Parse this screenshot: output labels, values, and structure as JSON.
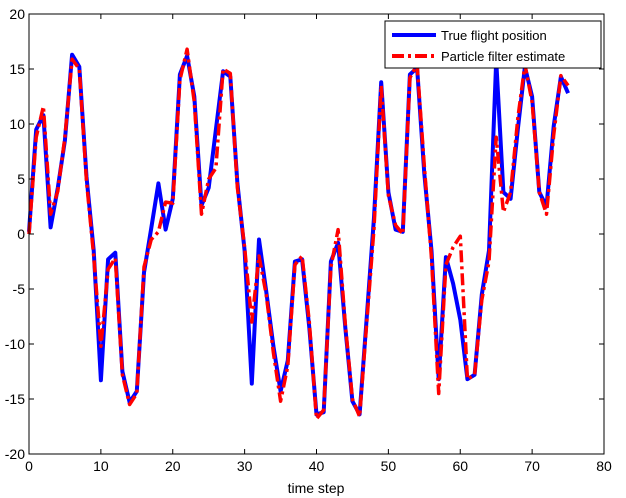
{
  "chart_data": {
    "type": "line",
    "title": "",
    "xlabel": "time step",
    "ylabel": "",
    "xlim": [
      0,
      80
    ],
    "ylim": [
      -20,
      20
    ],
    "xticks": [
      0,
      10,
      20,
      30,
      40,
      50,
      60,
      70,
      80
    ],
    "yticks": [
      -20,
      -15,
      -10,
      -5,
      0,
      5,
      10,
      15,
      20
    ],
    "grid": false,
    "legend_position": "top-right",
    "series": [
      {
        "name": "True flight position",
        "color": "#0000ff",
        "style": "solid",
        "x": [
          0,
          1,
          2,
          3,
          4,
          5,
          6,
          7,
          8,
          9,
          10,
          11,
          12,
          13,
          14,
          15,
          16,
          17,
          18,
          19,
          20,
          21,
          22,
          23,
          24,
          25,
          26,
          27,
          28,
          29,
          30,
          31,
          32,
          33,
          34,
          35,
          36,
          37,
          38,
          39,
          40,
          41,
          42,
          43,
          44,
          45,
          46,
          47,
          48,
          49,
          50,
          51,
          52,
          53,
          54,
          55,
          56,
          57,
          58,
          59,
          60,
          61,
          62,
          63,
          64,
          65,
          66,
          67,
          68,
          69,
          70,
          71,
          72,
          73,
          74,
          75
        ],
        "y": [
          0.2,
          9.5,
          10.8,
          0.6,
          4.2,
          8.5,
          16.3,
          15.2,
          5.2,
          -1.5,
          -13.3,
          -2.3,
          -1.7,
          -12.5,
          -15.3,
          -14.3,
          -3.5,
          0.5,
          4.6,
          0.4,
          3.2,
          14.5,
          16.2,
          12.5,
          2.6,
          4.2,
          9.5,
          14.8,
          14.3,
          4.6,
          -1.5,
          -13.6,
          -0.5,
          -5.2,
          -10.2,
          -14.3,
          -11.5,
          -2.5,
          -2.3,
          -8.5,
          -16.4,
          -16.2,
          -2.5,
          -0.8,
          -8.5,
          -15.2,
          -16.4,
          -7.5,
          1.5,
          13.8,
          3.8,
          0.4,
          0.2,
          14.5,
          15.1,
          5.5,
          -1.5,
          -13.2,
          -2.1,
          -4.5,
          -7.8,
          -13.2,
          -12.8,
          -5.5,
          -1.5,
          15.8,
          3.8,
          3.2,
          9.5,
          15.2,
          12.5,
          3.8,
          2.5,
          9.8,
          14.3,
          12.8
        ]
      },
      {
        "name": "Particle filter estimate",
        "color": "#ff0000",
        "style": "dashdot",
        "x": [
          0,
          1,
          2,
          3,
          4,
          5,
          6,
          7,
          8,
          9,
          10,
          11,
          12,
          13,
          14,
          15,
          16,
          17,
          18,
          19,
          20,
          21,
          22,
          23,
          24,
          25,
          26,
          27,
          28,
          29,
          30,
          31,
          32,
          33,
          34,
          35,
          36,
          37,
          38,
          39,
          40,
          41,
          42,
          43,
          44,
          45,
          46,
          47,
          48,
          49,
          50,
          51,
          52,
          53,
          54,
          55,
          56,
          57,
          58,
          59,
          60,
          61,
          62,
          63,
          64,
          65,
          66,
          67,
          68,
          69,
          70,
          71,
          72,
          73,
          74,
          75
        ],
        "y": [
          0.0,
          8.8,
          11.6,
          1.8,
          3.9,
          8.8,
          15.9,
          15.0,
          4.8,
          -2.0,
          -10.2,
          -3.2,
          -2.2,
          -12.8,
          -15.5,
          -14.5,
          -3.0,
          -0.5,
          0.2,
          2.9,
          2.8,
          14.0,
          16.8,
          12.0,
          1.8,
          5.0,
          6.0,
          15.0,
          14.6,
          4.2,
          -1.2,
          -8.0,
          -2.0,
          -5.5,
          -10.8,
          -15.2,
          -12.0,
          -2.8,
          -2.0,
          -8.0,
          -16.8,
          -16.0,
          -3.0,
          0.4,
          -8.2,
          -15.0,
          -16.6,
          -8.0,
          0.5,
          13.5,
          3.5,
          0.8,
          0.0,
          14.2,
          15.4,
          6.2,
          -2.2,
          -14.5,
          -2.8,
          -1.2,
          -0.2,
          -13.2,
          -12.8,
          -6.0,
          -2.5,
          8.8,
          2.0,
          3.8,
          10.5,
          15.4,
          12.0,
          3.8,
          1.8,
          9.0,
          14.4,
          13.5
        ]
      }
    ]
  }
}
